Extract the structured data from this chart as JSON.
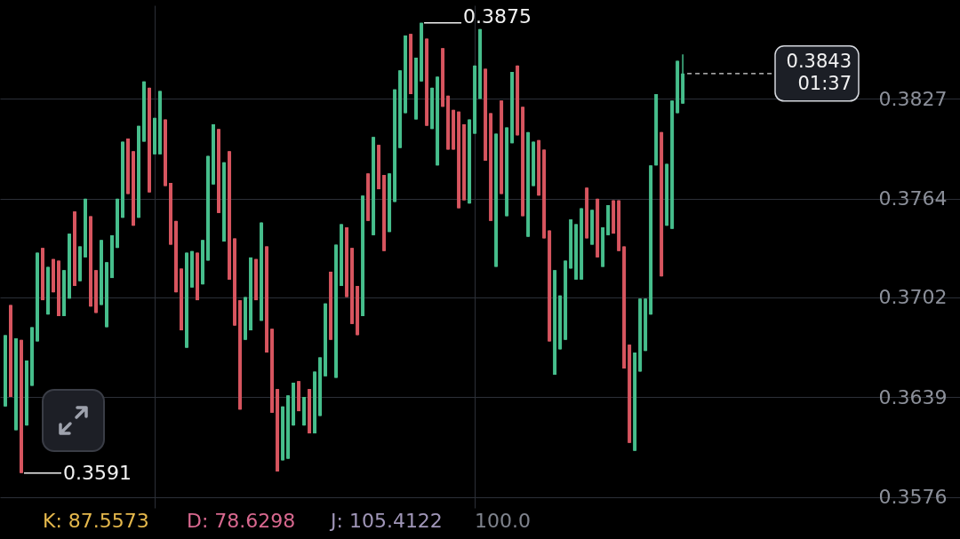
{
  "chart_data": {
    "type": "candlestick",
    "categories": [
      null,
      null,
      null,
      null,
      null,
      null,
      null,
      null,
      null,
      null,
      null,
      null,
      null,
      null,
      null,
      null,
      null,
      null,
      null,
      null,
      null,
      null,
      null,
      null,
      null,
      null,
      null,
      null,
      null,
      null,
      null,
      null,
      null,
      null,
      null,
      null,
      null,
      null,
      null,
      null,
      null,
      null,
      null,
      null,
      null,
      null,
      null,
      null,
      null,
      null,
      null,
      null,
      null,
      null,
      null,
      null,
      null,
      null,
      null,
      null,
      null,
      null,
      null,
      null,
      null,
      null,
      null,
      null,
      null,
      null,
      null,
      null,
      null,
      null,
      null,
      null,
      null,
      null,
      null,
      null,
      null,
      null,
      null,
      null,
      null,
      null,
      null,
      null,
      null,
      null,
      null,
      null,
      null,
      null,
      null,
      null,
      null,
      null,
      null,
      null,
      null,
      null,
      null,
      null,
      null,
      null,
      null,
      null,
      null,
      null,
      null,
      null,
      null,
      null,
      null,
      null,
      null,
      null,
      null,
      null,
      null,
      null,
      null,
      null,
      null,
      null,
      null,
      null,
      null,
      null,
      null,
      null,
      null,
      null,
      null,
      null,
      null,
      null,
      null,
      null,
      null,
      null,
      null,
      null,
      null,
      null,
      null,
      null,
      null,
      null,
      null,
      null,
      null,
      null,
      null,
      null,
      null,
      null,
      null,
      null,
      null,
      null,
      null,
      null,
      null,
      null,
      null,
      null,
      null,
      null,
      null,
      null,
      null,
      null,
      null,
      null,
      null,
      null,
      null,
      null
    ],
    "ohlc": [
      [
        0.3633,
        0.3678,
        0.3633,
        0.3678
      ],
      [
        0.3697,
        0.3697,
        0.3639,
        0.3639
      ],
      [
        0.3618,
        0.3676,
        0.3618,
        0.3676
      ],
      [
        0.3675,
        0.3675,
        0.3591,
        0.3591
      ],
      [
        0.3621,
        0.3662,
        0.3621,
        0.3662
      ],
      [
        0.3646,
        0.3683,
        0.3646,
        0.3683
      ],
      [
        0.3674,
        0.373,
        0.3674,
        0.373
      ],
      [
        0.3733,
        0.3733,
        0.37,
        0.37
      ],
      [
        0.3691,
        0.3721,
        0.3691,
        0.3721
      ],
      [
        0.3726,
        0.3726,
        0.3705,
        0.3705
      ],
      [
        0.3725,
        0.3725,
        0.369,
        0.369
      ],
      [
        0.369,
        0.3719,
        0.369,
        0.3719
      ],
      [
        0.3701,
        0.3742,
        0.3701,
        0.3742
      ],
      [
        0.3756,
        0.3756,
        0.3709,
        0.3709
      ],
      [
        0.3712,
        0.3734,
        0.3712,
        0.3734
      ],
      [
        0.3727,
        0.3764,
        0.3727,
        0.3764
      ],
      [
        0.3753,
        0.3753,
        0.3696,
        0.3696
      ],
      [
        0.3719,
        0.3719,
        0.3692,
        0.3692
      ],
      [
        0.3697,
        0.3738,
        0.3697,
        0.3738
      ],
      [
        0.3683,
        0.3724,
        0.3683,
        0.3724
      ],
      [
        0.3714,
        0.3741,
        0.3714,
        0.3741
      ],
      [
        0.3733,
        0.3764,
        0.3733,
        0.3764
      ],
      [
        0.3752,
        0.38,
        0.3752,
        0.38
      ],
      [
        0.3802,
        0.3802,
        0.3767,
        0.3767
      ],
      [
        0.3794,
        0.3794,
        0.3747,
        0.3747
      ],
      [
        0.3752,
        0.381,
        0.3752,
        0.381
      ],
      [
        0.38,
        0.3838,
        0.38,
        0.3838
      ],
      [
        0.3834,
        0.3834,
        0.3768,
        0.3768
      ],
      [
        0.3792,
        0.3815,
        0.3792,
        0.3815
      ],
      [
        0.3792,
        0.3832,
        0.3792,
        0.3832
      ],
      [
        0.3814,
        0.3814,
        0.3772,
        0.3772
      ],
      [
        0.3774,
        0.3774,
        0.3735,
        0.3735
      ],
      [
        0.375,
        0.375,
        0.3705,
        0.3705
      ],
      [
        0.372,
        0.372,
        0.3681,
        0.3681
      ],
      [
        0.367,
        0.373,
        0.367,
        0.373
      ],
      [
        0.3708,
        0.3731,
        0.3708,
        0.3731
      ],
      [
        0.373,
        0.373,
        0.37,
        0.37
      ],
      [
        0.371,
        0.3738,
        0.371,
        0.3738
      ],
      [
        0.3725,
        0.3791,
        0.3725,
        0.3791
      ],
      [
        0.3773,
        0.3811,
        0.3773,
        0.3811
      ],
      [
        0.3808,
        0.3808,
        0.3755,
        0.3755
      ],
      [
        0.3737,
        0.3787,
        0.3737,
        0.3787
      ],
      [
        0.3794,
        0.3794,
        0.3713,
        0.3713
      ],
      [
        0.3739,
        0.3739,
        0.3684,
        0.3684
      ],
      [
        0.37,
        0.37,
        0.3631,
        0.3631
      ],
      [
        0.3675,
        0.3702,
        0.3675,
        0.3702
      ],
      [
        0.3681,
        0.3727,
        0.3681,
        0.3727
      ],
      [
        0.3726,
        0.3726,
        0.37,
        0.37
      ],
      [
        0.3687,
        0.3749,
        0.3687,
        0.3749
      ],
      [
        0.3734,
        0.3734,
        0.3667,
        0.3667
      ],
      [
        0.3682,
        0.3682,
        0.3629,
        0.3629
      ],
      [
        0.3644,
        0.3644,
        0.3592,
        0.3592
      ],
      [
        0.3599,
        0.3633,
        0.3599,
        0.3633
      ],
      [
        0.36,
        0.364,
        0.36,
        0.364
      ],
      [
        0.3621,
        0.3648,
        0.3621,
        0.3648
      ],
      [
        0.3649,
        0.3649,
        0.363,
        0.363
      ],
      [
        0.3621,
        0.3639,
        0.3621,
        0.3639
      ],
      [
        0.3644,
        0.3644,
        0.3616,
        0.3616
      ],
      [
        0.3616,
        0.3655,
        0.3616,
        0.3655
      ],
      [
        0.3627,
        0.3664,
        0.3627,
        0.3664
      ],
      [
        0.3652,
        0.3698,
        0.3652,
        0.3698
      ],
      [
        0.3718,
        0.3718,
        0.3675,
        0.3675
      ],
      [
        0.3651,
        0.3735,
        0.3651,
        0.3735
      ],
      [
        0.3709,
        0.3748,
        0.3709,
        0.3748
      ],
      [
        0.3746,
        0.3746,
        0.3702,
        0.3702
      ],
      [
        0.3733,
        0.3733,
        0.3685,
        0.3685
      ],
      [
        0.3709,
        0.3709,
        0.3678,
        0.3678
      ],
      [
        0.369,
        0.3766,
        0.369,
        0.3766
      ],
      [
        0.378,
        0.378,
        0.375,
        0.375
      ],
      [
        0.3741,
        0.3803,
        0.3741,
        0.3803
      ],
      [
        0.3798,
        0.3798,
        0.377,
        0.377
      ],
      [
        0.3779,
        0.3779,
        0.3731,
        0.3731
      ],
      [
        0.3743,
        0.378,
        0.3743,
        0.378
      ],
      [
        0.3762,
        0.3833,
        0.3762,
        0.3833
      ],
      [
        0.3796,
        0.3845,
        0.3796,
        0.3845
      ],
      [
        0.3818,
        0.3867,
        0.3818,
        0.3867
      ],
      [
        0.3868,
        0.3868,
        0.383,
        0.383
      ],
      [
        0.3814,
        0.3853,
        0.3814,
        0.3853
      ],
      [
        0.3838,
        0.3875,
        0.3838,
        0.3875
      ],
      [
        0.3865,
        0.3865,
        0.381,
        0.381
      ],
      [
        0.3808,
        0.3834,
        0.3808,
        0.3834
      ],
      [
        0.3785,
        0.3841,
        0.3785,
        0.3841
      ],
      [
        0.3859,
        0.3859,
        0.3822,
        0.3822
      ],
      [
        0.3829,
        0.3829,
        0.3795,
        0.3795
      ],
      [
        0.382,
        0.382,
        0.3795,
        0.3795
      ],
      [
        0.3819,
        0.3819,
        0.3758,
        0.3758
      ],
      [
        0.3811,
        0.3811,
        0.3763,
        0.3763
      ],
      [
        0.3761,
        0.3814,
        0.3761,
        0.3814
      ],
      [
        0.3805,
        0.3848,
        0.3805,
        0.3848
      ],
      [
        0.3827,
        0.3871,
        0.3827,
        0.3871
      ],
      [
        0.3846,
        0.3846,
        0.3788,
        0.3788
      ],
      [
        0.3818,
        0.3818,
        0.375,
        0.375
      ],
      [
        0.3721,
        0.3805,
        0.3721,
        0.3805
      ],
      [
        0.3826,
        0.3826,
        0.3767,
        0.3767
      ],
      [
        0.3753,
        0.3809,
        0.3753,
        0.3809
      ],
      [
        0.3799,
        0.3844,
        0.3799,
        0.3844
      ],
      [
        0.3848,
        0.3848,
        0.3804,
        0.3804
      ],
      [
        0.3822,
        0.3822,
        0.3753,
        0.3753
      ],
      [
        0.374,
        0.3806,
        0.374,
        0.3806
      ],
      [
        0.3772,
        0.38,
        0.3772,
        0.38
      ],
      [
        0.3801,
        0.3801,
        0.3766,
        0.3766
      ],
      [
        0.3795,
        0.3795,
        0.3739,
        0.3739
      ],
      [
        0.3744,
        0.3744,
        0.3674,
        0.3674
      ],
      [
        0.3653,
        0.3719,
        0.3653,
        0.3719
      ],
      [
        0.3669,
        0.3703,
        0.3669,
        0.3703
      ],
      [
        0.3675,
        0.3725,
        0.3675,
        0.3725
      ],
      [
        0.372,
        0.3751,
        0.372,
        0.3751
      ],
      [
        0.3713,
        0.3748,
        0.3713,
        0.3748
      ],
      [
        0.3713,
        0.3758,
        0.3713,
        0.3758
      ],
      [
        0.3771,
        0.3771,
        0.3739,
        0.3739
      ],
      [
        0.3735,
        0.3757,
        0.3735,
        0.3757
      ],
      [
        0.3764,
        0.3764,
        0.3727,
        0.3727
      ],
      [
        0.3721,
        0.3746,
        0.3721,
        0.3746
      ],
      [
        0.3741,
        0.376,
        0.3741,
        0.376
      ],
      [
        0.3763,
        0.3763,
        0.3742,
        0.3742
      ],
      [
        0.3763,
        0.3763,
        0.3731,
        0.3731
      ],
      [
        0.3734,
        0.3734,
        0.3657,
        0.3657
      ],
      [
        0.3672,
        0.3672,
        0.361,
        0.361
      ],
      [
        0.3605,
        0.3667,
        0.3605,
        0.3667
      ],
      [
        0.3655,
        0.3701,
        0.3655,
        0.3701
      ],
      [
        0.3668,
        0.3701,
        0.3668,
        0.3701
      ],
      [
        0.3691,
        0.3785,
        0.3691,
        0.3785
      ],
      [
        0.3785,
        0.383,
        0.3785,
        0.383
      ],
      [
        0.3806,
        0.3806,
        0.3715,
        0.3715
      ],
      [
        0.3747,
        0.3786,
        0.3747,
        0.3786
      ],
      [
        0.3745,
        0.3826,
        0.3745,
        0.3826
      ],
      [
        0.3818,
        0.3851,
        0.3818,
        0.3851
      ],
      [
        0.3824,
        0.3855,
        0.3824,
        0.3843
      ],
      null,
      null,
      null,
      null,
      null,
      null,
      null,
      null,
      null,
      null,
      null,
      null,
      null,
      null,
      null,
      null,
      null,
      null,
      null,
      null,
      null,
      null,
      null,
      null,
      null,
      null,
      null,
      null,
      null,
      null,
      null,
      null,
      null,
      null,
      null,
      null,
      null,
      null,
      null,
      null,
      null,
      null,
      null,
      null,
      null,
      null,
      null,
      null,
      null,
      null,
      null,
      null
    ],
    "colors": [
      "#46be8c",
      "#d7555f",
      "#46be8c",
      "#d7555f",
      "#46be8c",
      "#46be8c",
      "#46be8c",
      "#d7555f",
      "#46be8c",
      "#d7555f",
      "#d7555f",
      "#46be8c",
      "#46be8c",
      "#d7555f",
      "#46be8c",
      "#46be8c",
      "#d7555f",
      "#d7555f",
      "#46be8c",
      "#46be8c",
      "#46be8c",
      "#46be8c",
      "#46be8c",
      "#d7555f",
      "#d7555f",
      "#46be8c",
      "#46be8c",
      "#d7555f",
      "#46be8c",
      "#46be8c",
      "#d7555f",
      "#d7555f",
      "#d7555f",
      "#d7555f",
      "#46be8c",
      "#46be8c",
      "#d7555f",
      "#46be8c",
      "#46be8c",
      "#46be8c",
      "#d7555f",
      "#46be8c",
      "#d7555f",
      "#d7555f",
      "#d7555f",
      "#46be8c",
      "#46be8c",
      "#d7555f",
      "#46be8c",
      "#d7555f",
      "#d7555f",
      "#d7555f",
      "#46be8c",
      "#46be8c",
      "#46be8c",
      "#d7555f",
      "#46be8c",
      "#d7555f",
      "#46be8c",
      "#46be8c",
      "#46be8c",
      "#d7555f",
      "#46be8c",
      "#46be8c",
      "#d7555f",
      "#d7555f",
      "#d7555f",
      "#46be8c",
      "#d7555f",
      "#46be8c",
      "#d7555f",
      "#d7555f",
      "#46be8c",
      "#46be8c",
      "#46be8c",
      "#46be8c",
      "#d7555f",
      "#46be8c",
      "#46be8c",
      "#d7555f",
      "#46be8c",
      "#46be8c",
      "#d7555f",
      "#d7555f",
      "#d7555f",
      "#d7555f",
      "#d7555f",
      "#46be8c",
      "#46be8c",
      "#46be8c",
      "#d7555f",
      "#d7555f",
      "#46be8c",
      "#d7555f",
      "#46be8c",
      "#46be8c",
      "#d7555f",
      "#d7555f",
      "#46be8c",
      "#46be8c",
      "#d7555f",
      "#d7555f",
      "#d7555f",
      "#46be8c",
      "#46be8c",
      "#46be8c",
      "#46be8c",
      "#46be8c",
      "#46be8c",
      "#d7555f",
      "#46be8c",
      "#d7555f",
      "#46be8c",
      "#46be8c",
      "#d7555f",
      "#d7555f",
      "#d7555f",
      "#d7555f",
      "#46be8c",
      "#46be8c",
      "#46be8c",
      "#46be8c",
      "#46be8c",
      "#d7555f",
      "#46be8c",
      "#46be8c",
      "#46be8c",
      "#46be8c",
      null,
      null,
      null,
      null,
      null,
      null,
      null,
      null,
      null,
      null,
      null,
      null,
      null,
      null,
      null,
      null,
      null,
      null,
      null,
      null,
      null,
      null,
      null,
      null,
      null,
      null,
      null,
      null,
      null,
      null,
      null,
      null,
      null,
      null,
      null,
      null,
      null,
      null,
      null,
      null,
      null,
      null,
      null,
      null,
      null,
      null,
      null,
      null,
      null,
      null,
      null,
      null
    ],
    "ylim": [
      0.3569,
      0.3886
    ],
    "yticks": [
      0.3576,
      0.3639,
      0.3702,
      0.3764,
      0.3827
    ],
    "grid": true,
    "tick_labels": "y",
    "ref_lines": [
      {
        "axis": "y",
        "value": 0.3843,
        "label": "0.3843",
        "color": "#d9d9d9",
        "line_style": "dashed"
      }
    ],
    "annotations": [
      "0.3875",
      "0.3591",
      "01:37",
      "K: 87.5573",
      "D: 78.6298",
      "J: 105.4122",
      "100.0"
    ]
  }
}
